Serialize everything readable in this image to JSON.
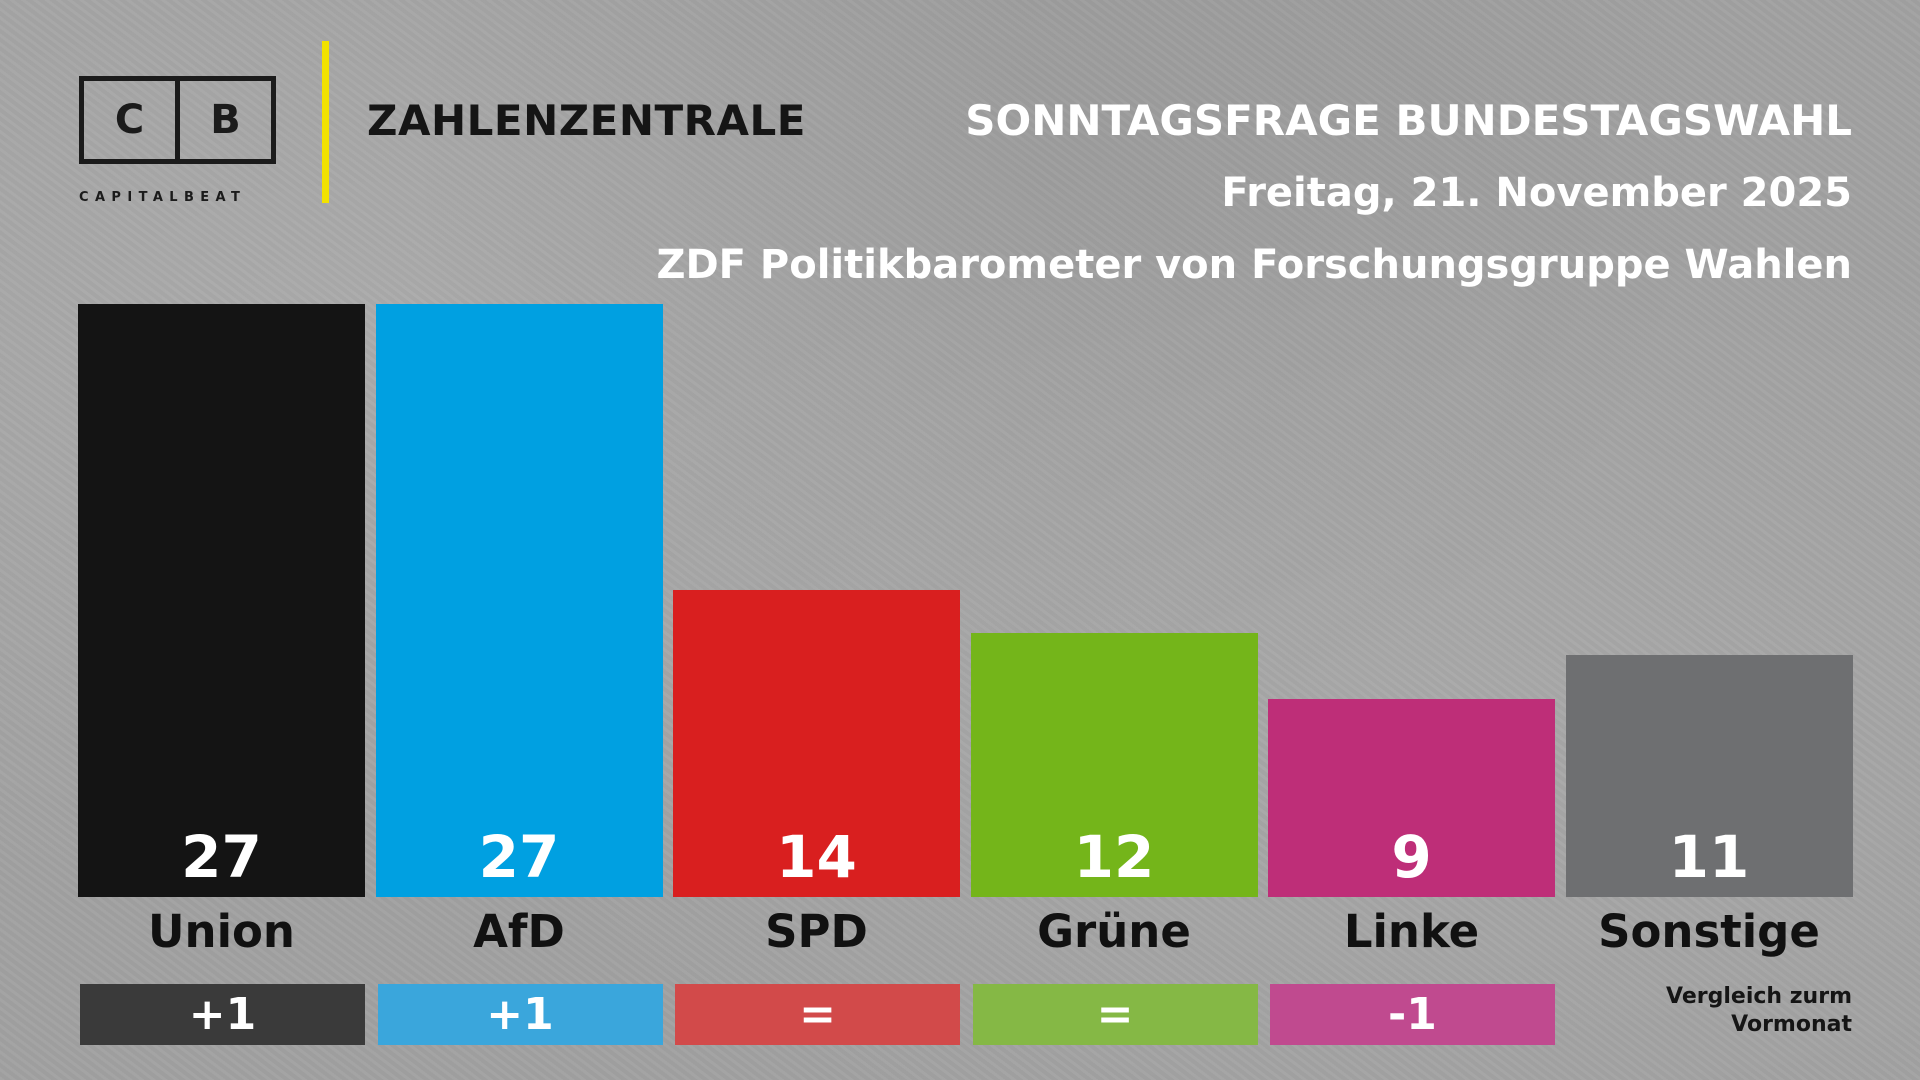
{
  "brand": {
    "logo_left": "C",
    "logo_right": "B",
    "logo_word": "CAPITALBEAT",
    "title": "ZAHLENZENTRALE",
    "accent_color": "#f2e200"
  },
  "header": {
    "title": "SONNTAGSFRAGE BUNDESTAGSWAHL",
    "date": "Freitag, 21. November 2025",
    "source": "ZDF Politikbarometer von Forschungsgruppe Wahlen"
  },
  "chart_data": {
    "type": "bar",
    "title": "SONNTAGSFRAGE BUNDESTAGSWAHL",
    "categories": [
      "Union",
      "AfD",
      "SPD",
      "Grüne",
      "Linke",
      "Sonstige"
    ],
    "values": [
      27,
      27,
      14,
      12,
      9,
      11
    ],
    "value_labels": [
      "27",
      "27",
      "14",
      "12",
      "9",
      "11"
    ],
    "changes": [
      "+1",
      "+1",
      "=",
      "=",
      "-1"
    ],
    "colors": [
      "#141414",
      "#00a0e1",
      "#d91f1f",
      "#74b51a",
      "#be2e78",
      "#6e6f71"
    ],
    "change_colors": [
      "#3a3a3a",
      "#3aa6dc",
      "#d24a4a",
      "#85b845",
      "#c04a8f"
    ],
    "ylim": [
      0,
      27
    ],
    "xlabel": "",
    "ylabel": ""
  },
  "footer_note": {
    "line1": "Vergleich zurm",
    "line2": "Vormonat"
  }
}
